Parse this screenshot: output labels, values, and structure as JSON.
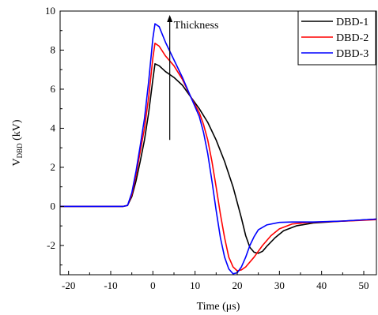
{
  "chart_data": {
    "type": "line",
    "xlabel": "Time (μs)",
    "ylabel_main": "V",
    "ylabel_sub": "DBD",
    "ylabel_unit": " (kV)",
    "xlim": [
      -22,
      53
    ],
    "ylim": [
      -3.5,
      10
    ],
    "xticks": [
      -20,
      -10,
      0,
      10,
      20,
      30,
      40,
      50
    ],
    "xtick_labels": [
      "-20",
      "-10",
      "0",
      "10",
      "20",
      "30",
      "40",
      "50"
    ],
    "yticks": [
      -2,
      0,
      2,
      4,
      6,
      8,
      10
    ],
    "ytick_labels": [
      "-2",
      "0",
      "2",
      "4",
      "6",
      "8",
      "10"
    ],
    "legend_position": "top-right",
    "annotation": {
      "text": "Thickness",
      "arrow_from": [
        4,
        3.4
      ],
      "arrow_to": [
        4,
        9.8
      ]
    },
    "series": [
      {
        "name": "DBD-1",
        "color": "#000000",
        "points": [
          [
            -22,
            0
          ],
          [
            -7,
            0
          ],
          [
            -6,
            0.05
          ],
          [
            -5,
            0.5
          ],
          [
            -4,
            1.3
          ],
          [
            -3,
            2.3
          ],
          [
            -2,
            3.4
          ],
          [
            -1,
            4.8
          ],
          [
            0,
            6.5
          ],
          [
            0.5,
            7.3
          ],
          [
            1.5,
            7.2
          ],
          [
            3,
            6.9
          ],
          [
            5,
            6.6
          ],
          [
            7,
            6.2
          ],
          [
            9,
            5.6
          ],
          [
            11,
            5.0
          ],
          [
            13,
            4.3
          ],
          [
            15,
            3.4
          ],
          [
            17,
            2.3
          ],
          [
            19,
            1.0
          ],
          [
            21,
            -0.6
          ],
          [
            22,
            -1.5
          ],
          [
            23,
            -2.1
          ],
          [
            24,
            -2.35
          ],
          [
            25,
            -2.4
          ],
          [
            26,
            -2.3
          ],
          [
            27,
            -2.05
          ],
          [
            29,
            -1.6
          ],
          [
            31,
            -1.25
          ],
          [
            34,
            -1.0
          ],
          [
            38,
            -0.85
          ],
          [
            43,
            -0.78
          ],
          [
            48,
            -0.72
          ],
          [
            53,
            -0.65
          ]
        ]
      },
      {
        "name": "DBD-2",
        "color": "#ff0000",
        "points": [
          [
            -22,
            0
          ],
          [
            -7,
            0
          ],
          [
            -6,
            0.05
          ],
          [
            -5,
            0.6
          ],
          [
            -4,
            1.6
          ],
          [
            -3,
            2.8
          ],
          [
            -2,
            4.0
          ],
          [
            -1,
            5.6
          ],
          [
            0,
            7.6
          ],
          [
            0.5,
            8.35
          ],
          [
            1.5,
            8.2
          ],
          [
            3,
            7.7
          ],
          [
            5,
            7.2
          ],
          [
            7,
            6.5
          ],
          [
            9,
            5.6
          ],
          [
            11,
            4.8
          ],
          [
            12,
            4.2
          ],
          [
            13,
            3.4
          ],
          [
            14,
            2.3
          ],
          [
            15,
            1.0
          ],
          [
            16,
            -0.4
          ],
          [
            17,
            -1.6
          ],
          [
            18,
            -2.6
          ],
          [
            19,
            -3.1
          ],
          [
            20,
            -3.3
          ],
          [
            21,
            -3.25
          ],
          [
            22,
            -3.1
          ],
          [
            24,
            -2.6
          ],
          [
            26,
            -2.0
          ],
          [
            28,
            -1.5
          ],
          [
            30,
            -1.15
          ],
          [
            33,
            -0.9
          ],
          [
            37,
            -0.82
          ],
          [
            42,
            -0.78
          ],
          [
            47,
            -0.74
          ],
          [
            53,
            -0.68
          ]
        ]
      },
      {
        "name": "DBD-3",
        "color": "#0000ff",
        "points": [
          [
            -22,
            0
          ],
          [
            -7,
            0
          ],
          [
            -6,
            0.05
          ],
          [
            -5,
            0.7
          ],
          [
            -4,
            1.8
          ],
          [
            -3,
            3.1
          ],
          [
            -2,
            4.5
          ],
          [
            -1,
            6.4
          ],
          [
            0,
            8.6
          ],
          [
            0.5,
            9.35
          ],
          [
            1.5,
            9.2
          ],
          [
            3,
            8.4
          ],
          [
            5,
            7.5
          ],
          [
            7,
            6.6
          ],
          [
            9,
            5.6
          ],
          [
            11,
            4.6
          ],
          [
            12,
            3.8
          ],
          [
            13,
            2.7
          ],
          [
            14,
            1.3
          ],
          [
            15,
            -0.2
          ],
          [
            16,
            -1.6
          ],
          [
            17,
            -2.6
          ],
          [
            18,
            -3.2
          ],
          [
            19,
            -3.45
          ],
          [
            20,
            -3.4
          ],
          [
            21,
            -3.1
          ],
          [
            22,
            -2.6
          ],
          [
            23,
            -2.0
          ],
          [
            24,
            -1.55
          ],
          [
            25,
            -1.2
          ],
          [
            27,
            -0.95
          ],
          [
            30,
            -0.82
          ],
          [
            33,
            -0.8
          ],
          [
            38,
            -0.8
          ],
          [
            45,
            -0.75
          ],
          [
            53,
            -0.65
          ]
        ]
      }
    ]
  }
}
